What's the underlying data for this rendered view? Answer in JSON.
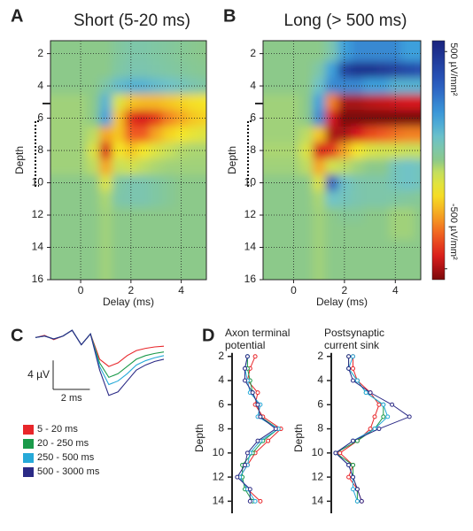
{
  "chart_data": [
    {
      "type": "heatmap",
      "panel": "A",
      "title": "Short (5-20 ms)",
      "xlabel": "Delay (ms)",
      "ylabel": "Depth",
      "x": [
        -1,
        -0.5,
        0,
        0.5,
        1,
        1.5,
        2,
        2.5,
        3,
        3.5,
        4,
        4.5,
        5
      ],
      "y": [
        2,
        3,
        4,
        5,
        6,
        7,
        8,
        9,
        10,
        11,
        12,
        13,
        14,
        15,
        16
      ],
      "values": [
        [
          0,
          0,
          0,
          0,
          0,
          30,
          50,
          50,
          40,
          30,
          20,
          10,
          0
        ],
        [
          0,
          0,
          0,
          0,
          0,
          40,
          60,
          60,
          50,
          40,
          30,
          20,
          10
        ],
        [
          0,
          0,
          0,
          0,
          50,
          120,
          150,
          150,
          120,
          100,
          80,
          60,
          40
        ],
        [
          -20,
          -20,
          -20,
          0,
          150,
          -100,
          -200,
          -220,
          -220,
          -200,
          -180,
          -160,
          -150
        ],
        [
          -20,
          -20,
          -20,
          0,
          200,
          -200,
          -420,
          -450,
          -400,
          -300,
          -250,
          -200,
          -180
        ],
        [
          -20,
          -20,
          -20,
          -50,
          -250,
          -200,
          -350,
          -350,
          -250,
          -180,
          -150,
          -120,
          -100
        ],
        [
          -20,
          -20,
          -20,
          -100,
          -450,
          -150,
          -200,
          -150,
          -100,
          -60,
          -40,
          -30,
          -30
        ],
        [
          -20,
          -20,
          -20,
          -50,
          -250,
          -60,
          -80,
          -50,
          -30,
          -20,
          -20,
          -20,
          -20
        ],
        [
          0,
          0,
          0,
          0,
          -100,
          40,
          60,
          60,
          40,
          20,
          0,
          0,
          0
        ],
        [
          0,
          0,
          0,
          0,
          -30,
          50,
          60,
          60,
          40,
          20,
          0,
          0,
          0
        ],
        [
          0,
          0,
          0,
          0,
          -20,
          0,
          0,
          0,
          0,
          0,
          0,
          0,
          0
        ],
        [
          0,
          0,
          0,
          0,
          -20,
          0,
          0,
          0,
          0,
          0,
          0,
          0,
          0
        ],
        [
          0,
          0,
          0,
          0,
          -20,
          0,
          0,
          0,
          0,
          0,
          0,
          0,
          0
        ],
        [
          0,
          0,
          0,
          0,
          -20,
          0,
          0,
          0,
          0,
          0,
          0,
          0,
          0
        ],
        [
          0,
          0,
          0,
          0,
          -20,
          0,
          0,
          0,
          0,
          0,
          0,
          0,
          0
        ]
      ],
      "xlim": [
        -1.2,
        5
      ],
      "ylim": [
        16,
        1.2
      ],
      "xticks": [
        0,
        2,
        4
      ],
      "yticks": [
        2,
        4,
        6,
        8,
        10,
        12,
        14,
        16
      ],
      "grid": true
    },
    {
      "type": "heatmap",
      "panel": "B",
      "title": "Long (> 500 ms)",
      "xlabel": "Delay (ms)",
      "ylabel": "Depth",
      "x": [
        -1,
        -0.5,
        0,
        0.5,
        1,
        1.5,
        2,
        2.5,
        3,
        3.5,
        4,
        4.5,
        5
      ],
      "y": [
        2,
        3,
        4,
        5,
        6,
        7,
        8,
        9,
        10,
        11,
        12,
        13,
        14,
        15,
        16
      ],
      "values": [
        [
          0,
          0,
          0,
          0,
          0,
          60,
          200,
          250,
          250,
          250,
          250,
          200,
          200
        ],
        [
          0,
          0,
          0,
          0,
          50,
          200,
          450,
          500,
          500,
          480,
          450,
          420,
          400
        ],
        [
          0,
          0,
          0,
          0,
          100,
          250,
          250,
          250,
          200,
          200,
          150,
          150,
          150
        ],
        [
          -20,
          -20,
          -20,
          0,
          200,
          -300,
          -500,
          -500,
          -480,
          -470,
          -460,
          -450,
          -450
        ],
        [
          -20,
          -20,
          -20,
          0,
          250,
          -450,
          -580,
          -580,
          -580,
          -570,
          -560,
          -550,
          -550
        ],
        [
          -20,
          -20,
          -20,
          -50,
          -200,
          -500,
          -500,
          -450,
          -380,
          -350,
          -320,
          -300,
          -300
        ],
        [
          -30,
          -30,
          -30,
          -100,
          -450,
          -400,
          -250,
          -150,
          -100,
          -80,
          -80,
          -60,
          -60
        ],
        [
          -20,
          -20,
          -20,
          -50,
          -250,
          -80,
          -50,
          -20,
          0,
          0,
          80,
          100,
          80
        ],
        [
          0,
          0,
          0,
          0,
          -100,
          350,
          100,
          60,
          50,
          50,
          80,
          100,
          80
        ],
        [
          0,
          0,
          0,
          0,
          -30,
          100,
          80,
          60,
          50,
          50,
          40,
          30,
          20
        ],
        [
          0,
          0,
          0,
          0,
          -20,
          0,
          20,
          20,
          0,
          0,
          -20,
          -20,
          0
        ],
        [
          0,
          0,
          0,
          0,
          -20,
          0,
          0,
          0,
          0,
          0,
          -20,
          -20,
          0
        ],
        [
          0,
          0,
          0,
          0,
          -20,
          0,
          0,
          0,
          0,
          0,
          0,
          0,
          0
        ],
        [
          0,
          0,
          0,
          0,
          -20,
          0,
          0,
          0,
          0,
          0,
          0,
          0,
          0
        ],
        [
          0,
          0,
          0,
          0,
          -20,
          0,
          0,
          0,
          0,
          0,
          0,
          0,
          0
        ]
      ],
      "xlim": [
        -1.2,
        5
      ],
      "ylim": [
        16,
        1.2
      ],
      "xticks": [
        0,
        2,
        4
      ],
      "yticks": [
        2,
        4,
        6,
        8,
        10,
        12,
        14,
        16
      ],
      "grid": true
    },
    {
      "type": "colorbar",
      "clim": [
        -550,
        550
      ],
      "ticks": [
        {
          "value": 500,
          "label": "500 µV/mm²"
        },
        {
          "value": -500,
          "label": "-500 µV/mm²"
        }
      ]
    },
    {
      "type": "line",
      "panel": "C",
      "x": [
        -1,
        -0.5,
        0,
        0.5,
        1,
        1.5,
        2,
        2.5,
        3,
        3.5,
        4,
        4.5,
        5,
        5.5,
        6
      ],
      "series": [
        {
          "name": "5 - 20 ms",
          "color": "#e8262a",
          "values": [
            0,
            0.3,
            -0.3,
            0.2,
            1,
            -1,
            0.5,
            -3,
            -4,
            -3.5,
            -2.5,
            -1.8,
            -1.5,
            -1.3,
            -1.2
          ]
        },
        {
          "name": "20 - 250 ms",
          "color": "#1a9a4a",
          "values": [
            0,
            0.2,
            -0.2,
            0.2,
            1,
            -1,
            0.5,
            -3.5,
            -5.5,
            -5,
            -4,
            -3,
            -2.5,
            -2.2,
            -2
          ]
        },
        {
          "name": "250 - 500 ms",
          "color": "#26a9d8",
          "values": [
            0,
            0.2,
            -0.2,
            0.2,
            1,
            -1,
            0.5,
            -4,
            -6.5,
            -6,
            -5,
            -3.8,
            -3.2,
            -2.8,
            -2.5
          ]
        },
        {
          "name": "500 - 3000 ms",
          "color": "#2b2a86",
          "values": [
            0,
            0.2,
            -0.2,
            0.2,
            1,
            -1,
            0.5,
            -4.5,
            -8,
            -7.5,
            -6,
            -4.5,
            -3.8,
            -3.3,
            -3
          ]
        }
      ],
      "xlim": [
        -1,
        6
      ],
      "ylim": [
        -9,
        2
      ],
      "scale_bars": [
        {
          "value": 4,
          "label": "4 µV"
        },
        {
          "value": 2,
          "label": "2 ms"
        }
      ]
    },
    {
      "type": "profile",
      "panel": "D",
      "title_lines": [
        "Axon terminal",
        "potential"
      ],
      "ylabel": "Depth",
      "y": [
        2,
        3,
        4,
        5,
        6,
        7,
        8,
        9,
        10,
        11,
        12,
        13,
        14
      ],
      "series": [
        {
          "color": "#e8262a",
          "values": [
            0.45,
            0.35,
            0.3,
            0.5,
            0.45,
            0.6,
            0.95,
            0.7,
            0.45,
            0.3,
            0.15,
            0.3,
            0.55
          ]
        },
        {
          "color": "#1a9a4a",
          "values": [
            0.3,
            0.3,
            0.35,
            0.4,
            0.5,
            0.55,
            0.9,
            0.6,
            0.4,
            0.2,
            0.2,
            0.25,
            0.4
          ]
        },
        {
          "color": "#26a9d8",
          "values": [
            0.3,
            0.25,
            0.3,
            0.35,
            0.55,
            0.5,
            0.9,
            0.55,
            0.35,
            0.3,
            0.15,
            0.3,
            0.45
          ]
        },
        {
          "color": "#2b2a86",
          "values": [
            0.3,
            0.25,
            0.25,
            0.4,
            0.5,
            0.55,
            0.85,
            0.5,
            0.3,
            0.25,
            0.1,
            0.35,
            0.35
          ]
        }
      ],
      "xlim": [
        0,
        1
      ],
      "ylim": [
        15,
        1.8
      ],
      "yticks": [
        2,
        4,
        6,
        8,
        10,
        12,
        14
      ]
    },
    {
      "type": "profile",
      "title_lines": [
        "Postsynaptic",
        "current sink"
      ],
      "ylabel": "Depth",
      "y": [
        2,
        3,
        4,
        5,
        6,
        7,
        8,
        9,
        10,
        11,
        12,
        13,
        14
      ],
      "series": [
        {
          "color": "#e8262a",
          "values": [
            0.25,
            0.25,
            0.3,
            0.45,
            0.55,
            0.5,
            0.45,
            0.3,
            0.1,
            0.25,
            0.2,
            0.3,
            0.35
          ]
        },
        {
          "color": "#1a9a4a",
          "values": [
            0.2,
            0.2,
            0.3,
            0.4,
            0.6,
            0.6,
            0.5,
            0.3,
            0.05,
            0.25,
            0.25,
            0.3,
            0.3
          ]
        },
        {
          "color": "#26a9d8",
          "values": [
            0.25,
            0.2,
            0.3,
            0.4,
            0.6,
            0.65,
            0.5,
            0.25,
            0.05,
            0.2,
            0.25,
            0.25,
            0.3
          ]
        },
        {
          "color": "#2b2a86",
          "values": [
            0.2,
            0.2,
            0.25,
            0.45,
            0.7,
            0.9,
            0.55,
            0.25,
            0.05,
            0.2,
            0.25,
            0.3,
            0.35
          ]
        }
      ],
      "xlim": [
        0,
        1
      ],
      "ylim": [
        15,
        1.8
      ],
      "yticks": [
        2,
        4,
        6,
        8,
        10,
        12,
        14
      ]
    }
  ]
}
